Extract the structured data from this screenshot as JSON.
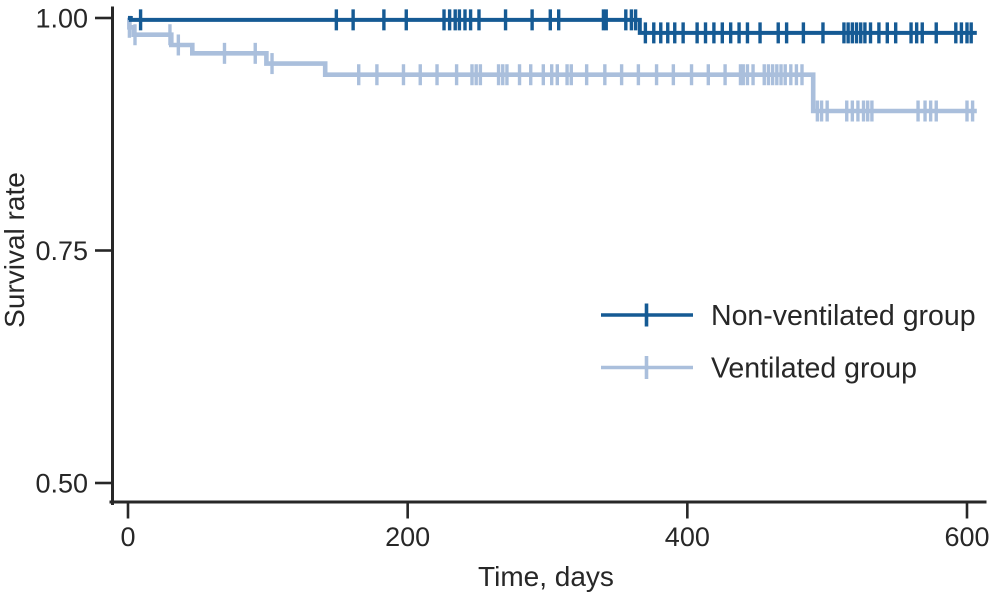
{
  "chart_data": {
    "type": "line",
    "variant": "kaplan_meier_step_curve",
    "title": "",
    "xlabel": "Time, days",
    "ylabel": "Survival rate",
    "x_ticks": [
      0,
      200,
      400,
      600
    ],
    "x_tick_labels": [
      "0",
      "200",
      "400",
      "600"
    ],
    "y_ticks": [
      1.0,
      0.75,
      0.5
    ],
    "y_tick_labels": [
      "1.00",
      "0.75",
      "0.50"
    ],
    "xlim": [
      0,
      613
    ],
    "ylim": [
      0.48,
      1.005
    ],
    "grid": false,
    "legend_position": "center-right",
    "axis_color": "#272727",
    "text_color": "#272727",
    "series": [
      {
        "id": "non-ventilated",
        "name": "Non-ventilated group",
        "color": "#155a94",
        "steps": [
          [
            0,
            1.0
          ],
          [
            2,
            1.0
          ],
          [
            2,
            0.998
          ],
          [
            366,
            0.998
          ],
          [
            366,
            0.984
          ],
          [
            607,
            0.984
          ]
        ],
        "censor_days": [
          9,
          149,
          161,
          183,
          199,
          226,
          230,
          234,
          237,
          241,
          245,
          251,
          270,
          289,
          302,
          308,
          340,
          342,
          356,
          360,
          363,
          370,
          376,
          381,
          386,
          391,
          397,
          407,
          413,
          419,
          425,
          431,
          437,
          443,
          452,
          465,
          471,
          483,
          497,
          512,
          515,
          518,
          521,
          524,
          527,
          531,
          537,
          543,
          549,
          560,
          564,
          568,
          578,
          592,
          596,
          600,
          603
        ]
      },
      {
        "id": "ventilated",
        "name": "Ventilated group",
        "color": "#aabfdc",
        "steps": [
          [
            0,
            1.0
          ],
          [
            1,
            1.0
          ],
          [
            1,
            0.99
          ],
          [
            4,
            0.99
          ],
          [
            4,
            0.982
          ],
          [
            31,
            0.982
          ],
          [
            31,
            0.971
          ],
          [
            46,
            0.971
          ],
          [
            46,
            0.962
          ],
          [
            99,
            0.962
          ],
          [
            99,
            0.951
          ],
          [
            141,
            0.951
          ],
          [
            141,
            0.939
          ],
          [
            490,
            0.939
          ],
          [
            490,
            0.9
          ],
          [
            607,
            0.9
          ]
        ],
        "censor_days": [
          1,
          5,
          30,
          36,
          69,
          91,
          103,
          165,
          178,
          197,
          209,
          221,
          235,
          246,
          249,
          252,
          265,
          268,
          271,
          280,
          288,
          297,
          303,
          307,
          314,
          317,
          328,
          341,
          353,
          365,
          378,
          390,
          403,
          415,
          427,
          438,
          440,
          443,
          447,
          455,
          458,
          461,
          464,
          467,
          470,
          474,
          478,
          482,
          493,
          496,
          500,
          514,
          518,
          522,
          526,
          529,
          532,
          565,
          570,
          574,
          578,
          600,
          604
        ]
      }
    ]
  }
}
